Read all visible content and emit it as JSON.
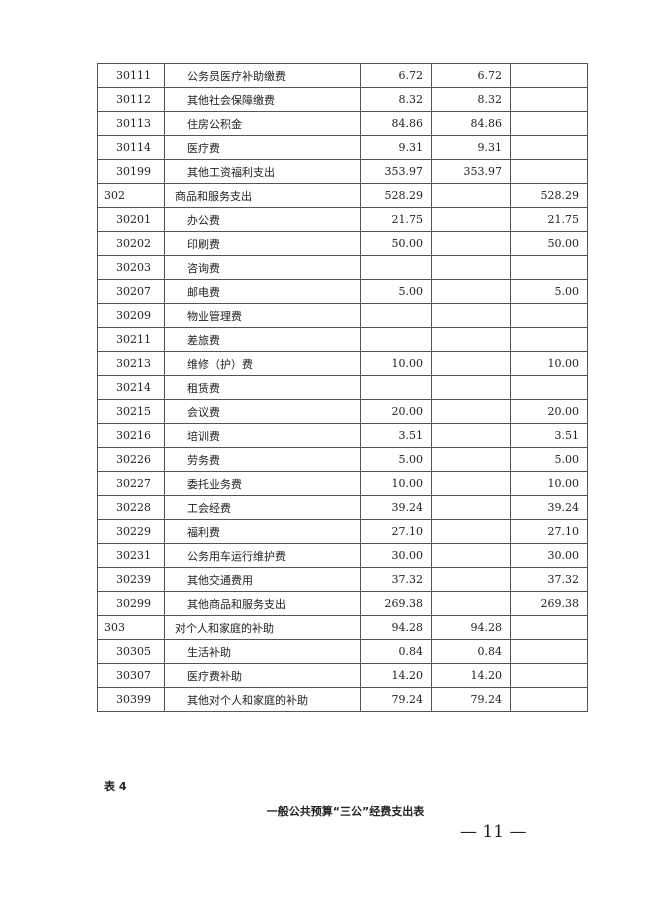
{
  "table": {
    "rows": [
      {
        "code": "30111",
        "name": "公务员医疗补助缴费",
        "a": "6.72",
        "b": "6.72",
        "c": "",
        "top": false
      },
      {
        "code": "30112",
        "name": "其他社会保障缴费",
        "a": "8.32",
        "b": "8.32",
        "c": "",
        "top": false
      },
      {
        "code": "30113",
        "name": "住房公积金",
        "a": "84.86",
        "b": "84.86",
        "c": "",
        "top": false
      },
      {
        "code": "30114",
        "name": "医疗费",
        "a": "9.31",
        "b": "9.31",
        "c": "",
        "top": false
      },
      {
        "code": "30199",
        "name": "其他工资福利支出",
        "a": "353.97",
        "b": "353.97",
        "c": "",
        "top": false
      },
      {
        "code": "302",
        "name": "商品和服务支出",
        "a": "528.29",
        "b": "",
        "c": "528.29",
        "top": true
      },
      {
        "code": "30201",
        "name": "办公费",
        "a": "21.75",
        "b": "",
        "c": "21.75",
        "top": false
      },
      {
        "code": "30202",
        "name": "印刷费",
        "a": "50.00",
        "b": "",
        "c": "50.00",
        "top": false
      },
      {
        "code": "30203",
        "name": "咨询费",
        "a": "",
        "b": "",
        "c": "",
        "top": false
      },
      {
        "code": "30207",
        "name": "邮电费",
        "a": "5.00",
        "b": "",
        "c": "5.00",
        "top": false
      },
      {
        "code": "30209",
        "name": "物业管理费",
        "a": "",
        "b": "",
        "c": "",
        "top": false
      },
      {
        "code": "30211",
        "name": "差旅费",
        "a": "",
        "b": "",
        "c": "",
        "top": false
      },
      {
        "code": "30213",
        "name": "维修（护）费",
        "a": "10.00",
        "b": "",
        "c": "10.00",
        "top": false
      },
      {
        "code": "30214",
        "name": "租赁费",
        "a": "",
        "b": "",
        "c": "",
        "top": false
      },
      {
        "code": "30215",
        "name": "会议费",
        "a": "20.00",
        "b": "",
        "c": "20.00",
        "top": false
      },
      {
        "code": "30216",
        "name": "培训费",
        "a": "3.51",
        "b": "",
        "c": "3.51",
        "top": false
      },
      {
        "code": "30226",
        "name": "劳务费",
        "a": "5.00",
        "b": "",
        "c": "5.00",
        "top": false
      },
      {
        "code": "30227",
        "name": "委托业务费",
        "a": "10.00",
        "b": "",
        "c": "10.00",
        "top": false
      },
      {
        "code": "30228",
        "name": "工会经费",
        "a": "39.24",
        "b": "",
        "c": "39.24",
        "top": false
      },
      {
        "code": "30229",
        "name": "福利费",
        "a": "27.10",
        "b": "",
        "c": "27.10",
        "top": false
      },
      {
        "code": "30231",
        "name": "公务用车运行维护费",
        "a": "30.00",
        "b": "",
        "c": "30.00",
        "top": false
      },
      {
        "code": "30239",
        "name": "其他交通费用",
        "a": "37.32",
        "b": "",
        "c": "37.32",
        "top": false
      },
      {
        "code": "30299",
        "name": "其他商品和服务支出",
        "a": "269.38",
        "b": "",
        "c": "269.38",
        "top": false
      },
      {
        "code": "303",
        "name": "对个人和家庭的补助",
        "a": "94.28",
        "b": "94.28",
        "c": "",
        "top": true
      },
      {
        "code": "30305",
        "name": "生活补助",
        "a": "0.84",
        "b": "0.84",
        "c": "",
        "top": false
      },
      {
        "code": "30307",
        "name": "医疗费补助",
        "a": "14.20",
        "b": "14.20",
        "c": "",
        "top": false
      },
      {
        "code": "30399",
        "name": "其他对个人和家庭的补助",
        "a": "79.24",
        "b": "79.24",
        "c": "",
        "top": false
      }
    ]
  },
  "next_table_label": "表 4",
  "next_table_title": "一般公共预算“三公”经费支出表",
  "page_number": "— 11 —"
}
